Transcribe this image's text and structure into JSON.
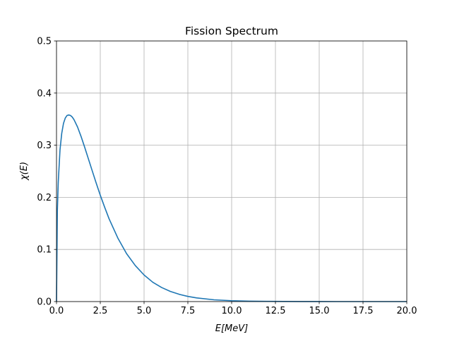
{
  "chart_data": {
    "type": "line",
    "title": "Fission Spectrum",
    "xlabel": "E[MeV]",
    "ylabel": "χ(E)",
    "xlim": [
      0,
      20
    ],
    "ylim": [
      0,
      0.5
    ],
    "grid": true,
    "xticks": [
      "0.0",
      "2.5",
      "5.0",
      "7.5",
      "10.0",
      "12.5",
      "15.0",
      "17.5",
      "20.0"
    ],
    "yticks": [
      "0.0",
      "0.1",
      "0.2",
      "0.3",
      "0.4",
      "0.5"
    ],
    "line_color": "#1f77b4",
    "grid_color": "#b0b0b0",
    "series": [
      {
        "x": [
          0,
          0.05,
          0.1,
          0.2,
          0.3,
          0.4,
          0.5,
          0.6,
          0.7,
          0.8,
          0.9,
          1.0,
          1.2,
          1.4,
          1.6,
          1.8,
          2.0,
          2.25,
          2.5,
          2.75,
          3.0,
          3.5,
          4.0,
          4.5,
          5.0,
          5.5,
          6.0,
          6.5,
          7.0,
          7.5,
          8.0,
          9.0,
          10.0,
          11.0,
          12.0,
          13.0,
          14.0,
          15.0,
          16.0,
          17.0,
          18.0,
          19.0,
          20.0
        ],
        "y": [
          0,
          0.175,
          0.229,
          0.291,
          0.323,
          0.342,
          0.352,
          0.357,
          0.358,
          0.357,
          0.354,
          0.349,
          0.335,
          0.317,
          0.297,
          0.276,
          0.255,
          0.229,
          0.204,
          0.181,
          0.159,
          0.122,
          0.092,
          0.069,
          0.051,
          0.037,
          0.027,
          0.0195,
          0.014,
          0.0099,
          0.007,
          0.0034,
          0.0017,
          0.0008,
          0.0004,
          0.0002,
          0.0001,
          4e-05,
          2e-05,
          1e-05,
          5e-06,
          2e-06,
          1e-06
        ]
      }
    ]
  }
}
